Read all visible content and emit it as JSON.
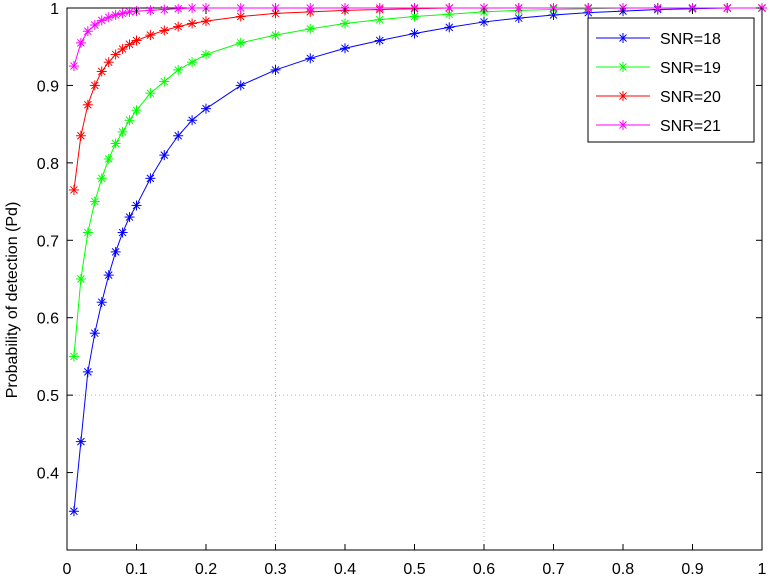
{
  "chart_data": {
    "type": "line",
    "title": "",
    "xlabel": "",
    "ylabel": "Probability of detection (Pd)",
    "xlim": [
      0,
      1
    ],
    "ylim": [
      0.3,
      1
    ],
    "x_ticks": [
      0,
      0.1,
      0.2,
      0.3,
      0.4,
      0.5,
      0.6,
      0.7,
      0.8,
      0.9,
      1
    ],
    "x_tick_labels": [
      "0",
      "0.1",
      "0.2",
      "0.3",
      "0.4",
      "0.5",
      "0.6",
      "0.7",
      "0.8",
      "0.9",
      "1"
    ],
    "y_ticks": [
      0.4,
      0.5,
      0.6,
      0.7,
      0.8,
      0.9,
      1
    ],
    "y_tick_labels": [
      "0.4",
      "0.5",
      "0.6",
      "0.7",
      "0.8",
      "0.9",
      "1"
    ],
    "grid_x": [
      0.3,
      0.6
    ],
    "grid_y": [
      0.5,
      1
    ],
    "legend_position": "top-right",
    "x": [
      0.01,
      0.02,
      0.03,
      0.04,
      0.05,
      0.06,
      0.07,
      0.08,
      0.09,
      0.1,
      0.12,
      0.14,
      0.16,
      0.18,
      0.2,
      0.25,
      0.3,
      0.35,
      0.4,
      0.45,
      0.5,
      0.55,
      0.6,
      0.65,
      0.7,
      0.75,
      0.8,
      0.85,
      0.9,
      0.95,
      1.0
    ],
    "series": [
      {
        "name": "SNR=18",
        "color": "#0000ff",
        "values": [
          0.35,
          0.44,
          0.53,
          0.58,
          0.62,
          0.655,
          0.685,
          0.71,
          0.73,
          0.745,
          0.78,
          0.81,
          0.835,
          0.855,
          0.87,
          0.9,
          0.92,
          0.935,
          0.948,
          0.958,
          0.967,
          0.975,
          0.982,
          0.987,
          0.991,
          0.994,
          0.996,
          0.998,
          0.999,
          1.0,
          1.0
        ]
      },
      {
        "name": "SNR=19",
        "color": "#00ff00",
        "values": [
          0.55,
          0.65,
          0.71,
          0.75,
          0.78,
          0.805,
          0.825,
          0.84,
          0.855,
          0.868,
          0.89,
          0.905,
          0.92,
          0.93,
          0.94,
          0.955,
          0.965,
          0.973,
          0.98,
          0.985,
          0.989,
          0.992,
          0.995,
          0.997,
          0.998,
          0.999,
          1.0,
          1.0,
          1.0,
          1.0,
          1.0
        ]
      },
      {
        "name": "SNR=20",
        "color": "#ff0000",
        "values": [
          0.765,
          0.835,
          0.875,
          0.9,
          0.918,
          0.93,
          0.94,
          0.947,
          0.953,
          0.958,
          0.965,
          0.971,
          0.976,
          0.98,
          0.983,
          0.989,
          0.993,
          0.995,
          0.997,
          0.998,
          0.999,
          1.0,
          1.0,
          1.0,
          1.0,
          1.0,
          1.0,
          1.0,
          1.0,
          1.0,
          1.0
        ]
      },
      {
        "name": "SNR=21",
        "color": "#ff00ff",
        "values": [
          0.925,
          0.955,
          0.97,
          0.978,
          0.984,
          0.988,
          0.991,
          0.993,
          0.995,
          0.996,
          0.997,
          0.998,
          0.999,
          1.0,
          1.0,
          1.0,
          1.0,
          1.0,
          1.0,
          1.0,
          1.0,
          1.0,
          1.0,
          1.0,
          1.0,
          1.0,
          1.0,
          1.0,
          1.0,
          1.0,
          1.0
        ]
      }
    ]
  }
}
